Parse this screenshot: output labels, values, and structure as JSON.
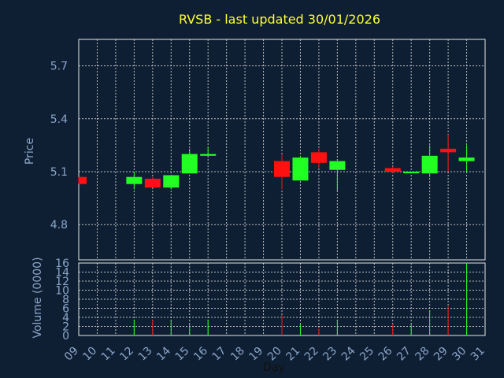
{
  "chart_data": {
    "type": "candlestick",
    "title": "RVSB - last updated 30/01/2026",
    "xlabel": "Day",
    "price_panel": {
      "ylabel": "Price",
      "ylim": [
        4.6,
        5.85
      ],
      "yticks": [
        4.8,
        5.1,
        5.4,
        5.7
      ]
    },
    "volume_panel": {
      "ylabel": "Volume (0000)",
      "ylim": [
        0,
        16
      ],
      "yticks": [
        0,
        2,
        4,
        6,
        8,
        10,
        12,
        14,
        16
      ]
    },
    "xticks": [
      "09",
      "10",
      "11",
      "12",
      "13",
      "14",
      "15",
      "16",
      "17",
      "18",
      "19",
      "20",
      "21",
      "22",
      "23",
      "24",
      "25",
      "26",
      "27",
      "28",
      "29",
      "30",
      "31"
    ],
    "candles": [
      {
        "day": "09",
        "open": 5.07,
        "high": 5.07,
        "low": 5.03,
        "close": 5.03
      },
      {
        "day": "12",
        "open": 5.03,
        "high": 5.1,
        "low": 5.0,
        "close": 5.07
      },
      {
        "day": "13",
        "open": 5.06,
        "high": 5.07,
        "low": 5.01,
        "close": 5.01
      },
      {
        "day": "14",
        "open": 5.01,
        "high": 5.08,
        "low": 5.0,
        "close": 5.08
      },
      {
        "day": "15",
        "open": 5.09,
        "high": 5.23,
        "low": 5.09,
        "close": 5.2
      },
      {
        "day": "16",
        "open": 5.19,
        "high": 5.24,
        "low": 5.19,
        "close": 5.2
      },
      {
        "day": "20",
        "open": 5.16,
        "high": 5.2,
        "low": 5.0,
        "close": 5.07
      },
      {
        "day": "21",
        "open": 5.05,
        "high": 5.19,
        "low": 5.05,
        "close": 5.18
      },
      {
        "day": "22",
        "open": 5.21,
        "high": 5.23,
        "low": 5.12,
        "close": 5.15
      },
      {
        "day": "23",
        "open": 5.11,
        "high": 5.16,
        "low": 4.99,
        "close": 5.16
      },
      {
        "day": "26",
        "open": 5.12,
        "high": 5.13,
        "low": 5.09,
        "close": 5.1
      },
      {
        "day": "27",
        "open": 5.1,
        "high": 5.1,
        "low": 5.09,
        "close": 5.1
      },
      {
        "day": "28",
        "open": 5.09,
        "high": 5.25,
        "low": 5.07,
        "close": 5.19
      },
      {
        "day": "29",
        "open": 5.23,
        "high": 5.31,
        "low": 5.1,
        "close": 5.21
      },
      {
        "day": "30",
        "open": 5.16,
        "high": 5.25,
        "low": 5.1,
        "close": 5.18
      }
    ],
    "volumes": [
      {
        "day": "12",
        "value": 3.5,
        "dir": "up"
      },
      {
        "day": "13",
        "value": 3.5,
        "dir": "down"
      },
      {
        "day": "14",
        "value": 3.5,
        "dir": "up"
      },
      {
        "day": "15",
        "value": 2.5,
        "dir": "up"
      },
      {
        "day": "16",
        "value": 3.5,
        "dir": "up"
      },
      {
        "day": "20",
        "value": 4.5,
        "dir": "down"
      },
      {
        "day": "21",
        "value": 2.5,
        "dir": "up"
      },
      {
        "day": "22",
        "value": 1.5,
        "dir": "down"
      },
      {
        "day": "23",
        "value": 3.5,
        "dir": "up"
      },
      {
        "day": "26",
        "value": 2.5,
        "dir": "down"
      },
      {
        "day": "27",
        "value": 2.5,
        "dir": "up"
      },
      {
        "day": "28",
        "value": 5.5,
        "dir": "up"
      },
      {
        "day": "29",
        "value": 6.5,
        "dir": "down"
      },
      {
        "day": "30",
        "value": 16,
        "dir": "up"
      }
    ],
    "colors": {
      "background": "#0f1f33",
      "up": "#22ff22",
      "down": "#ff1111",
      "title": "#ffff33",
      "axis_text": "#8aa5c8",
      "grid": "#d8d8d8"
    }
  }
}
